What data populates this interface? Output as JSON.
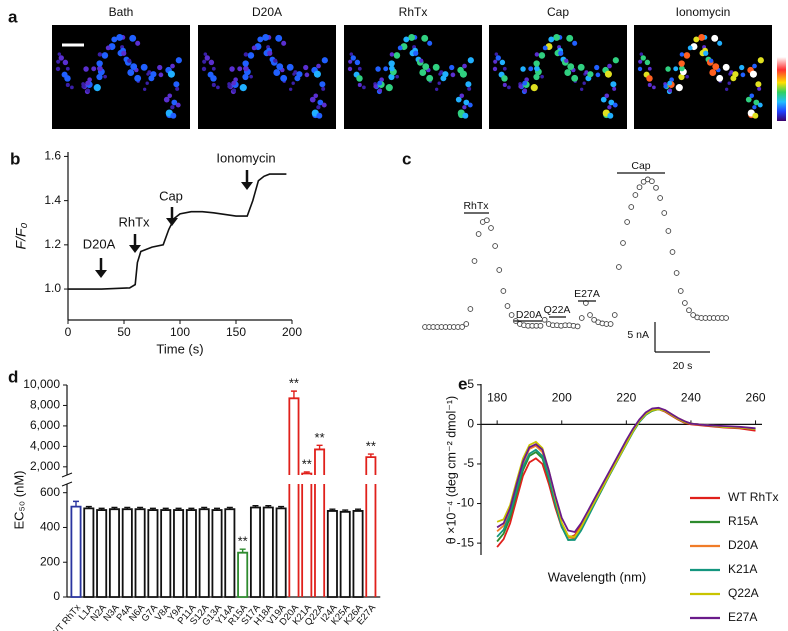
{
  "image_panel": {
    "label": "a",
    "titles": [
      "Bath",
      "D20A",
      "RhTx",
      "Cap",
      "Ionomycin"
    ]
  },
  "chart_data": [
    {
      "type": "line",
      "label": "b",
      "xlabel": "Time (s)",
      "ylabel": "F/F₀",
      "x": [
        0,
        30,
        55,
        60,
        62,
        65,
        75,
        85,
        90,
        95,
        100,
        110,
        120,
        130,
        150,
        160,
        165,
        170,
        175,
        180,
        195
      ],
      "values": [
        1.0,
        1.0,
        1.005,
        1.02,
        1.12,
        1.17,
        1.19,
        1.2,
        1.27,
        1.32,
        1.34,
        1.35,
        1.35,
        1.345,
        1.33,
        1.33,
        1.4,
        1.49,
        1.51,
        1.52,
        1.52
      ],
      "color": "#111111",
      "xlim": [
        0,
        200
      ],
      "xticks": [
        0,
        50,
        100,
        150,
        200
      ],
      "ylim": [
        0.86,
        1.62
      ],
      "yticks": [
        {
          "value": 1.0,
          "label": "1.0"
        },
        {
          "value": 1.2,
          "label": "1.2"
        },
        {
          "value": 1.4,
          "label": "1.4"
        },
        {
          "value": 1.6,
          "label": "1.6"
        }
      ],
      "annotations": [
        "D20A",
        "RhTx",
        "Cap",
        "Ionomycin"
      ]
    },
    {
      "type": "scatter",
      "label": "c",
      "x": [
        0,
        1.5,
        3,
        4.5,
        6,
        7.5,
        9,
        10.5,
        12,
        13.5,
        15,
        16.5,
        18,
        19.5,
        21,
        22.5,
        24,
        25.5,
        27,
        28.5,
        30,
        31.5,
        33,
        34.5,
        36,
        37.5,
        39,
        40.5,
        42,
        43.5,
        45,
        46.5,
        48,
        49.5,
        51,
        52.5,
        54,
        55.5,
        57,
        58.5,
        60,
        61.5,
        63,
        64.5,
        66,
        67.5,
        69,
        70.5,
        72,
        73.5,
        75,
        76.5,
        78,
        79.5,
        81,
        82.5,
        84,
        85.5,
        87,
        88.5,
        90,
        91.5,
        93,
        94.5,
        96,
        97.5,
        99,
        100.5,
        102,
        103.5,
        105,
        106.5,
        108,
        109.5
      ],
      "values": [
        0,
        0,
        0,
        0,
        0,
        0,
        0,
        0,
        0,
        0,
        0.5,
        3,
        11,
        15.5,
        17.5,
        17.8,
        16.5,
        13.5,
        9.5,
        6,
        3.5,
        2,
        1,
        0.5,
        0.3,
        0.2,
        0.2,
        0.2,
        0.2,
        1.2,
        0.5,
        0.3,
        0.3,
        0.2,
        0.3,
        0.3,
        0.2,
        0.1,
        1.5,
        4,
        2,
        1.2,
        0.8,
        0.6,
        0.5,
        0.5,
        2,
        10,
        14,
        17.5,
        20,
        22,
        23.3,
        24.2,
        24.6,
        24.3,
        23.2,
        21.5,
        19,
        16,
        12.5,
        9,
        6,
        4,
        2.8,
        2,
        1.6,
        1.5,
        1.5,
        1.5,
        1.5,
        1.5,
        1.5,
        1.5
      ],
      "color": "#444444",
      "annotations": [
        "RhTx",
        "D20A",
        "Q22A",
        "E27A",
        "Cap"
      ],
      "scale_bars": [
        {
          "value": 5,
          "label": "5 nA"
        },
        {
          "value": 20,
          "label": "20 s"
        }
      ]
    },
    {
      "type": "bar",
      "label": "d",
      "ylabel": "EC₅₀ (nM)",
      "categories": [
        "WT RhTx",
        "L1A",
        "N2A",
        "N3A",
        "P4A",
        "N6A",
        "G7A",
        "V8A",
        "Y9A",
        "P11A",
        "S12A",
        "G13A",
        "Y14A",
        "R15A",
        "S17A",
        "H18A",
        "V19A",
        "D20A",
        "K21A",
        "Q22A",
        "I24A",
        "K25A",
        "K26A",
        "E27A"
      ],
      "values": [
        520,
        510,
        500,
        505,
        505,
        505,
        500,
        500,
        500,
        500,
        505,
        500,
        505,
        255,
        515,
        515,
        510,
        8700,
        1350,
        3700,
        495,
        490,
        495,
        2950
      ],
      "errors": [
        30,
        10,
        10,
        10,
        10,
        10,
        10,
        10,
        10,
        10,
        10,
        10,
        10,
        20,
        10,
        10,
        10,
        700,
        150,
        400,
        10,
        10,
        10,
        300
      ],
      "colors": [
        "#2a35a0",
        "#111111",
        "#111111",
        "#111111",
        "#111111",
        "#111111",
        "#111111",
        "#111111",
        "#111111",
        "#111111",
        "#111111",
        "#111111",
        "#111111",
        "#2e8b2e",
        "#111111",
        "#111111",
        "#111111",
        "#e0201b",
        "#e0201b",
        "#e0201b",
        "#111111",
        "#111111",
        "#111111",
        "#e0201b"
      ],
      "significance": [
        null,
        null,
        null,
        null,
        null,
        null,
        null,
        null,
        null,
        null,
        null,
        null,
        null,
        "**",
        null,
        null,
        null,
        "**",
        "**",
        "**",
        null,
        null,
        null,
        "**"
      ],
      "ylim": [
        0,
        10000
      ],
      "ybreak": [
        650,
        1200
      ],
      "yticks": [
        0,
        200,
        400,
        600,
        {
          "value": 2000,
          "label": "2,000"
        },
        {
          "value": 4000,
          "label": "4,000"
        },
        {
          "value": 6000,
          "label": "6,000"
        },
        {
          "value": 8000,
          "label": "8,000"
        },
        {
          "value": 10000,
          "label": "10,000"
        }
      ]
    },
    {
      "type": "line",
      "label": "e",
      "xlabel": "Wavelength (nm)",
      "ylabel": "θ ×10⁻⁴ (deg cm⁻² dmol⁻¹)",
      "x": [
        180,
        182,
        184,
        186,
        188,
        190,
        192,
        194,
        196,
        198,
        200,
        202,
        204,
        206,
        208,
        210,
        212,
        214,
        216,
        218,
        220,
        222,
        224,
        226,
        228,
        230,
        232,
        234,
        236,
        238,
        240,
        245,
        250,
        255,
        260
      ],
      "series": [
        {
          "name": "WT RhTx",
          "color": "#e0201b",
          "values": [
            -15.5,
            -14.5,
            -12.5,
            -9.5,
            -6.5,
            -4.8,
            -4.3,
            -5,
            -7.5,
            -10.5,
            -13,
            -14.3,
            -14,
            -12.8,
            -11.3,
            -9.8,
            -8.3,
            -6.8,
            -5.3,
            -3.8,
            -2.3,
            -0.8,
            0.4,
            1.3,
            1.8,
            1.9,
            1.6,
            1.1,
            0.6,
            0.2,
            0,
            -0.2,
            -0.4,
            -0.5,
            -0.8
          ]
        },
        {
          "name": "R15A",
          "color": "#2e8b2e",
          "values": [
            -14.8,
            -13.8,
            -11.8,
            -8.8,
            -5.8,
            -4.0,
            -3.5,
            -4.3,
            -6.9,
            -10.1,
            -12.9,
            -14.6,
            -14.5,
            -13.3,
            -11.7,
            -10.1,
            -8.6,
            -7.0,
            -5.5,
            -4.0,
            -2.5,
            -1.0,
            0.3,
            1.2,
            1.7,
            1.9,
            1.7,
            1.2,
            0.7,
            0.3,
            0.1,
            -0.1,
            -0.3,
            -0.4,
            -0.6
          ]
        },
        {
          "name": "D20A",
          "color": "#f07c28",
          "values": [
            -13.5,
            -12.8,
            -10.8,
            -7.8,
            -4.9,
            -3.1,
            -2.7,
            -3.5,
            -6.2,
            -9.6,
            -12.6,
            -14.3,
            -14.3,
            -13.1,
            -11.5,
            -9.9,
            -8.4,
            -6.9,
            -5.4,
            -3.9,
            -2.4,
            -0.9,
            0.4,
            1.4,
            1.9,
            2.0,
            1.8,
            1.3,
            0.8,
            0.4,
            0.1,
            -0.1,
            -0.3,
            -0.4,
            -0.6
          ]
        },
        {
          "name": "K21A",
          "color": "#14967f",
          "values": [
            -14.2,
            -13.3,
            -11.3,
            -8.3,
            -5.4,
            -3.7,
            -3.2,
            -4.0,
            -6.7,
            -10.0,
            -12.9,
            -14.6,
            -14.6,
            -13.4,
            -11.8,
            -10.2,
            -8.6,
            -7.0,
            -5.5,
            -4.0,
            -2.5,
            -1.0,
            0.3,
            1.2,
            1.8,
            1.9,
            1.7,
            1.2,
            0.7,
            0.3,
            0.1,
            -0.1,
            -0.3,
            -0.4,
            -0.6
          ]
        },
        {
          "name": "Q22A",
          "color": "#c9c400",
          "values": [
            -12.3,
            -12.0,
            -10.2,
            -7.2,
            -4.3,
            -2.6,
            -2.2,
            -3.0,
            -5.8,
            -9.3,
            -12.4,
            -14.1,
            -14.2,
            -13.0,
            -11.4,
            -9.9,
            -8.4,
            -6.9,
            -5.4,
            -3.9,
            -2.4,
            -0.9,
            0.4,
            1.3,
            1.8,
            1.9,
            1.7,
            1.2,
            0.7,
            0.3,
            0.1,
            -0.1,
            -0.3,
            -0.4,
            -0.6
          ]
        },
        {
          "name": "E27A",
          "color": "#6a1b8a",
          "values": [
            -13.0,
            -12.5,
            -10.6,
            -7.6,
            -4.7,
            -2.9,
            -2.5,
            -3.2,
            -5.8,
            -9.0,
            -11.8,
            -13.4,
            -13.6,
            -12.5,
            -11.0,
            -9.5,
            -8.0,
            -6.5,
            -5.0,
            -3.5,
            -2.0,
            -0.6,
            0.6,
            1.5,
            2.0,
            2.1,
            1.8,
            1.3,
            0.8,
            0.4,
            0.1,
            -0.1,
            -0.2,
            -0.3,
            -0.5
          ]
        }
      ],
      "xlim": [
        175,
        262
      ],
      "xticks": [
        180,
        200,
        220,
        240,
        260
      ],
      "ylim": [
        -16.5,
        5.1
      ],
      "yticks": [
        5,
        0,
        -5,
        -10,
        -15
      ]
    }
  ]
}
